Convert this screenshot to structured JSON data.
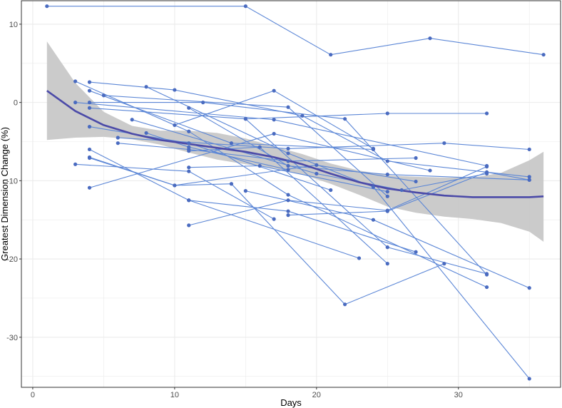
{
  "chart_data": {
    "type": "line",
    "title": "",
    "xlabel": "Days",
    "ylabel": "Greatest Dimension Change (%)",
    "xlim": [
      -0.8,
      37.2
    ],
    "ylim": [
      -36.4,
      13.0
    ],
    "xticks": [
      0,
      10,
      20,
      30
    ],
    "yticks": [
      -30,
      -20,
      -10,
      0,
      10
    ],
    "grid": true,
    "colors": {
      "series": "#5b86d6",
      "points": "#4a6bc0",
      "smooth": "#4b4aa8",
      "ribbon": "#c8c8c8",
      "grid": "#ebebeb",
      "panel_border": "#333333"
    },
    "series": [
      {
        "name": "patient-1",
        "x": [
          1,
          15,
          21,
          28,
          36
        ],
        "y": [
          12.3,
          12.3,
          6.1,
          8.2,
          6.1
        ]
      },
      {
        "name": "patient-2",
        "x": [
          3,
          11,
          18,
          32
        ],
        "y": [
          2.7,
          -3.7,
          -11.8,
          -23.6
        ]
      },
      {
        "name": "patient-3",
        "x": [
          4,
          10,
          19,
          25,
          35
        ],
        "y": [
          2.6,
          1.6,
          -1.7,
          -7.5,
          -9.5
        ]
      },
      {
        "name": "patient-4",
        "x": [
          4,
          14,
          24
        ],
        "y": [
          1.5,
          -5.2,
          -6.0
        ]
      },
      {
        "name": "patient-5",
        "x": [
          5,
          18,
          25
        ],
        "y": [
          0.9,
          -0.6,
          -12.0
        ]
      },
      {
        "name": "patient-6",
        "x": [
          8,
          18,
          24,
          35
        ],
        "y": [
          2.0,
          -6.5,
          -10.8,
          -35.3
        ]
      },
      {
        "name": "patient-7",
        "x": [
          3,
          17,
          32
        ],
        "y": [
          0.0,
          -2.2,
          -8.1
        ]
      },
      {
        "name": "patient-8",
        "x": [
          4,
          12,
          22,
          32
        ],
        "y": [
          0.0,
          0.0,
          -2.1,
          -22.0
        ]
      },
      {
        "name": "patient-9",
        "x": [
          4,
          15,
          25,
          32
        ],
        "y": [
          -0.7,
          -2.1,
          -1.4,
          -1.4
        ]
      },
      {
        "name": "patient-10",
        "x": [
          4,
          11,
          21
        ],
        "y": [
          -3.1,
          -5.2,
          -11.2
        ]
      },
      {
        "name": "patient-11",
        "x": [
          4,
          17,
          28
        ],
        "y": [
          -10.9,
          -4.0,
          -8.7
        ]
      },
      {
        "name": "patient-12",
        "x": [
          6,
          18,
          29,
          35
        ],
        "y": [
          -4.5,
          -5.9,
          -5.2,
          -6.0
        ]
      },
      {
        "name": "patient-13",
        "x": [
          6,
          11,
          18,
          27
        ],
        "y": [
          -5.2,
          -6.0,
          -7.5,
          -7.1
        ]
      },
      {
        "name": "patient-14",
        "x": [
          7,
          20,
          26,
          32
        ],
        "y": [
          -2.2,
          -9.1,
          -11.2,
          -9.1
        ]
      },
      {
        "name": "patient-15",
        "x": [
          3,
          11,
          17
        ],
        "y": [
          -7.9,
          -8.8,
          -14.9
        ]
      },
      {
        "name": "patient-16",
        "x": [
          4,
          11,
          23
        ],
        "y": [
          -6.0,
          -12.5,
          -19.9
        ]
      },
      {
        "name": "patient-17",
        "x": [
          4,
          10,
          14,
          22,
          29
        ],
        "y": [
          -7.1,
          -10.6,
          -10.4,
          -25.8,
          -20.6
        ]
      },
      {
        "name": "patient-18",
        "x": [
          8,
          11,
          18
        ],
        "y": [
          -3.9,
          -5.7,
          -8.6
        ]
      },
      {
        "name": "patient-19",
        "x": [
          10,
          17,
          24
        ],
        "y": [
          -2.9,
          1.5,
          -5.9
        ]
      },
      {
        "name": "patient-20",
        "x": [
          11,
          18,
          25,
          35
        ],
        "y": [
          -0.7,
          -8.1,
          -9.2,
          -9.9
        ]
      },
      {
        "name": "patient-21",
        "x": [
          11,
          16,
          25
        ],
        "y": [
          -8.3,
          -8.1,
          -11.4
        ]
      },
      {
        "name": "patient-22",
        "x": [
          11,
          16,
          25
        ],
        "y": [
          -6.2,
          -5.7,
          -20.6
        ]
      },
      {
        "name": "patient-23",
        "x": [
          11,
          18,
          25,
          32
        ],
        "y": [
          -15.7,
          -12.5,
          -13.8,
          -8.2
        ]
      },
      {
        "name": "patient-24",
        "x": [
          15,
          24,
          35
        ],
        "y": [
          -11.3,
          -15.0,
          -23.7
        ]
      },
      {
        "name": "patient-25",
        "x": [
          11,
          18,
          27
        ],
        "y": [
          -12.5,
          -13.9,
          -19.1
        ]
      },
      {
        "name": "patient-26",
        "x": [
          4,
          10,
          20,
          27
        ],
        "y": [
          -7.0,
          -10.6,
          -8.0,
          -10.1
        ]
      },
      {
        "name": "patient-27",
        "x": [
          18,
          25,
          32,
          35
        ],
        "y": [
          -14.4,
          -13.9,
          -8.9,
          -9.9
        ]
      },
      {
        "name": "patient-28",
        "x": [
          15,
          25,
          32
        ],
        "y": [
          -2.1,
          -18.5,
          -21.9
        ]
      }
    ],
    "smooth": {
      "x": [
        1,
        3,
        5,
        7,
        9,
        11,
        13,
        15,
        17,
        19,
        21,
        23,
        25,
        27,
        29,
        31,
        33,
        35,
        36
      ],
      "y": [
        1.5,
        -1.1,
        -2.9,
        -4.0,
        -4.8,
        -5.3,
        -5.8,
        -6.3,
        -7.0,
        -7.9,
        -9.1,
        -10.2,
        -11.0,
        -11.5,
        -11.9,
        -12.1,
        -12.1,
        -12.1,
        -12.0
      ],
      "lower": [
        -4.8,
        -4.5,
        -4.4,
        -4.7,
        -5.4,
        -6.4,
        -7.3,
        -7.9,
        -8.4,
        -9.2,
        -10.4,
        -11.8,
        -13.3,
        -14.1,
        -14.6,
        -14.9,
        -15.4,
        -16.5,
        -17.8
      ],
      "upper": [
        7.8,
        2.5,
        -1.2,
        -3.0,
        -3.6,
        -3.6,
        -3.9,
        -4.6,
        -5.6,
        -6.6,
        -7.8,
        -8.7,
        -9.3,
        -9.5,
        -9.6,
        -9.6,
        -9.0,
        -7.4,
        -6.3
      ]
    }
  }
}
